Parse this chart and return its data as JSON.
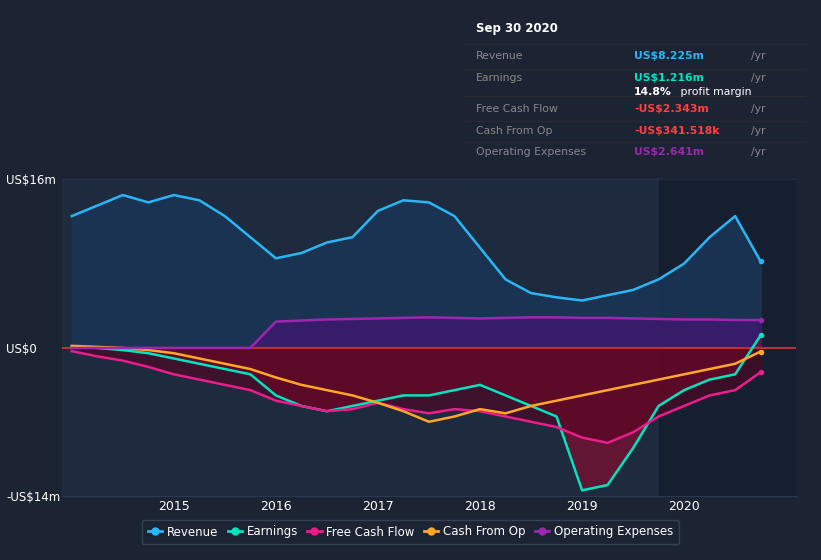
{
  "bg_color": "#1c2333",
  "plot_bg_color": "#1e2a3e",
  "ylim": [
    -14,
    16
  ],
  "xlim": [
    2013.9,
    2021.1
  ],
  "ytick_positions": [
    -14,
    0,
    16
  ],
  "ytick_labels": [
    "-US$14m",
    "US$0",
    "US$16m"
  ],
  "xticks": [
    2015,
    2016,
    2017,
    2018,
    2019,
    2020
  ],
  "highlight_start": 2019.75,
  "grid_color": "#2a3a55",
  "zero_line_color": "#cc3333",
  "revenue_color": "#29b6f6",
  "revenue_fill": "#1a3555",
  "earnings_color": "#00e5c0",
  "fcf_color": "#e91e8c",
  "cashop_color": "#ffa726",
  "opex_color": "#9c27b0",
  "opex_fill": "#3d1a6e",
  "neg_fill": "#7a1030",
  "info_box": {
    "date": "Sep 30 2020",
    "revenue_val": "US$8.225m",
    "earnings_val": "US$1.216m",
    "profit_margin": "14.8%",
    "fcf_val": "-US$2.343m",
    "cashop_val": "-US$341.518k",
    "opex_val": "US$2.641m"
  },
  "legend_items": [
    {
      "label": "Revenue",
      "color": "#29b6f6"
    },
    {
      "label": "Earnings",
      "color": "#00e5c0"
    },
    {
      "label": "Free Cash Flow",
      "color": "#e91e8c"
    },
    {
      "label": "Cash From Op",
      "color": "#ffa726"
    },
    {
      "label": "Operating Expenses",
      "color": "#9c27b0"
    }
  ],
  "x": [
    2014.0,
    2014.25,
    2014.5,
    2014.75,
    2015.0,
    2015.25,
    2015.5,
    2015.75,
    2016.0,
    2016.25,
    2016.5,
    2016.75,
    2017.0,
    2017.25,
    2017.5,
    2017.75,
    2018.0,
    2018.25,
    2018.5,
    2018.75,
    2019.0,
    2019.25,
    2019.5,
    2019.75,
    2020.0,
    2020.25,
    2020.5,
    2020.75
  ],
  "revenue": [
    12.5,
    13.5,
    14.5,
    13.8,
    14.5,
    14.0,
    12.5,
    10.5,
    8.5,
    9.0,
    10.0,
    10.5,
    13.0,
    14.0,
    13.8,
    12.5,
    9.5,
    6.5,
    5.2,
    4.8,
    4.5,
    5.0,
    5.5,
    6.5,
    8.0,
    10.5,
    12.5,
    8.2
  ],
  "earnings": [
    0.1,
    0.0,
    -0.2,
    -0.5,
    -1.0,
    -1.5,
    -2.0,
    -2.5,
    -4.5,
    -5.5,
    -6.0,
    -5.5,
    -5.0,
    -4.5,
    -4.5,
    -4.0,
    -3.5,
    -4.5,
    -5.5,
    -6.5,
    -13.5,
    -13.0,
    -9.5,
    -5.5,
    -4.0,
    -3.0,
    -2.5,
    1.2
  ],
  "fcf": [
    -0.3,
    -0.8,
    -1.2,
    -1.8,
    -2.5,
    -3.0,
    -3.5,
    -4.0,
    -5.0,
    -5.5,
    -6.0,
    -5.8,
    -5.2,
    -5.8,
    -6.2,
    -5.8,
    -6.0,
    -6.5,
    -7.0,
    -7.5,
    -8.5,
    -9.0,
    -8.0,
    -6.5,
    -5.5,
    -4.5,
    -4.0,
    -2.3
  ],
  "cashop": [
    0.2,
    0.1,
    0.0,
    -0.2,
    -0.5,
    -1.0,
    -1.5,
    -2.0,
    -2.8,
    -3.5,
    -4.0,
    -4.5,
    -5.2,
    -6.0,
    -7.0,
    -6.5,
    -5.8,
    -6.2,
    -5.5,
    -5.0,
    -4.5,
    -4.0,
    -3.5,
    -3.0,
    -2.5,
    -2.0,
    -1.5,
    -0.34
  ],
  "opex": [
    0.0,
    0.0,
    0.0,
    0.0,
    0.0,
    0.0,
    0.0,
    0.0,
    2.5,
    2.6,
    2.7,
    2.75,
    2.8,
    2.85,
    2.9,
    2.85,
    2.8,
    2.85,
    2.9,
    2.9,
    2.85,
    2.85,
    2.8,
    2.75,
    2.7,
    2.7,
    2.65,
    2.64
  ]
}
